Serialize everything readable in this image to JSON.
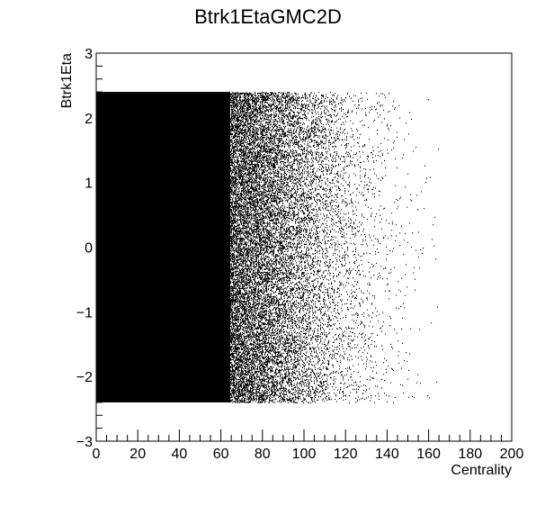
{
  "chart_data": {
    "type": "scatter",
    "title": "Btrk1EtaGMC2D",
    "xlabel": "Centrality",
    "ylabel": "Btrk1Eta",
    "xlim": [
      0,
      200
    ],
    "ylim": [
      -3,
      3
    ],
    "x_major_ticks": [
      0,
      20,
      40,
      60,
      80,
      100,
      120,
      140,
      160,
      180,
      200
    ],
    "x_tick_labels": [
      "0",
      "20",
      "40",
      "60",
      "80",
      "100",
      "120",
      "140",
      "160",
      "180",
      "200"
    ],
    "y_major_ticks": [
      -3,
      -2,
      -1,
      0,
      1,
      2,
      3
    ],
    "y_tick_labels": [
      "−3",
      "−2",
      "−1",
      "0",
      "1",
      "2",
      "3"
    ],
    "grid": false,
    "legend": false,
    "point_color": "#000000",
    "distribution": {
      "eta_range": [
        -2.4,
        2.4
      ],
      "centrality_range": [
        0,
        200
      ],
      "density_profile": [
        {
          "centrality": 0,
          "relative_density": 1.0
        },
        {
          "centrality": 60,
          "relative_density": 0.97
        },
        {
          "centrality": 80,
          "relative_density": 0.8
        },
        {
          "centrality": 100,
          "relative_density": 0.55
        },
        {
          "centrality": 120,
          "relative_density": 0.3
        },
        {
          "centrality": 140,
          "relative_density": 0.15
        },
        {
          "centrality": 160,
          "relative_density": 0.05
        },
        {
          "centrality": 180,
          "relative_density": 0.01
        },
        {
          "centrality": 200,
          "relative_density": 0.003
        }
      ]
    }
  }
}
